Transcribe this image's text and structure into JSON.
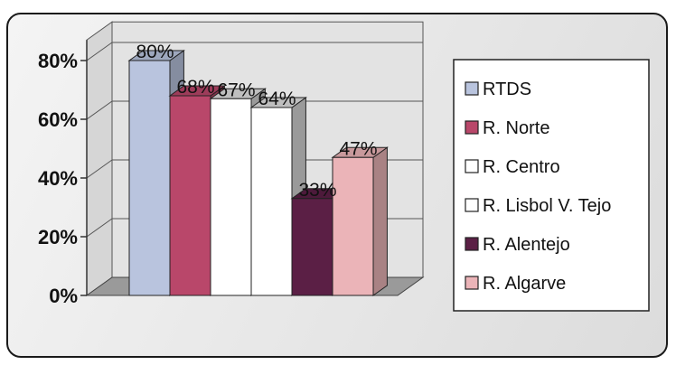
{
  "chart_data": {
    "type": "bar",
    "categories": [
      "RTDS",
      "R. Norte",
      "R. Centro",
      "R. Lisbol V. Tejo",
      "R. Alentejo",
      "R. Algarve"
    ],
    "values": [
      80,
      68,
      67,
      64,
      33,
      47
    ],
    "data_labels": [
      "80%",
      "68%",
      "67%",
      "64%",
      "33%",
      "47%"
    ],
    "y_ticks": [
      "0%",
      "20%",
      "40%",
      "60%",
      "80%"
    ],
    "ylim": [
      0,
      100
    ],
    "grid": true,
    "legend_position": "right",
    "colors": [
      "#b9c4de",
      "#b9476a",
      "#ffffff",
      "#ffffff",
      "#5b1f45",
      "#ebb4b8"
    ],
    "legend": [
      "RTDS",
      "R. Norte",
      "R. Centro",
      "R. Lisbol V. Tejo",
      "R. Alentejo",
      "R. Algarve"
    ]
  }
}
